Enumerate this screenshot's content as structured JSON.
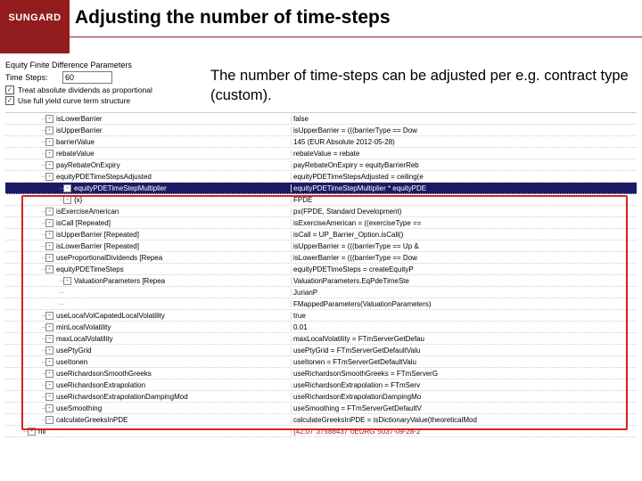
{
  "header": {
    "logo": "SUNGARD",
    "title": "Adjusting the number of time-steps"
  },
  "description": "The number of time-steps can be adjusted per e.g. contract type (custom).",
  "panel": {
    "title": "Equity Finite Difference Parameters",
    "time_steps_label": "Time Steps:",
    "time_steps_value": "60",
    "cb1": "Treat absolute dividends as proportional",
    "cb2": "Use full yield curve term structure"
  },
  "tree": {
    "rows": [
      {
        "indent": 2,
        "ex": "-",
        "label": "isLowerBarrier",
        "right": "false"
      },
      {
        "indent": 2,
        "ex": "-",
        "label": "isUpperBarrier",
        "right": "isUpperBarrier = (((barrierType == Dow"
      },
      {
        "indent": 2,
        "ex": "-",
        "label": "barrierValue",
        "right": "145 (EUR Absolute 2012-05-28)"
      },
      {
        "indent": 2,
        "ex": "-",
        "label": "rebateValue",
        "right": "rebateValue = rebate"
      },
      {
        "indent": 2,
        "ex": "-",
        "label": "payRebateOnExpiry",
        "right": "payRebateOnExpiry = equityBarrierReb"
      },
      {
        "indent": 2,
        "ex": "-",
        "label": "equityPDETimeStepsAdjusted",
        "right": "equityPDETimeStepsAdjusted = ceiling(e"
      },
      {
        "indent": 3,
        "ex": "-",
        "label": "",
        "right": "equityPDETimeStepMultiplier * equityPDE",
        "highlight": true,
        "sublabel": "equityPDETimeStepMultiplier"
      },
      {
        "indent": 3,
        "ex": "-",
        "label": "{x}",
        "right": "FPDE"
      },
      {
        "indent": 2,
        "ex": "-",
        "label": "isExerciseAmerican",
        "right": "px(FPDE, Standard Development)"
      },
      {
        "indent": 2,
        "ex": "-",
        "label": "isCall [Repeated]",
        "right": "isExerciseAmerican = ((exerciseType =="
      },
      {
        "indent": 2,
        "ex": "-",
        "label": "isUpperBarrier [Repeated]",
        "right": "isCall = UP_Barrier_Option.isCall()"
      },
      {
        "indent": 2,
        "ex": "-",
        "label": "isLowerBarrier [Repeated]",
        "right": "isUpperBarrier = (((barrierType == Up &"
      },
      {
        "indent": 2,
        "ex": "-",
        "label": "useProportionalDividends [Repea",
        "right": "isLowerBarrier = (((barrierType == Dow"
      },
      {
        "indent": 2,
        "ex": "-",
        "label": "equityPDETimeSteps",
        "right": "equityPDETimeSteps = createEquityP"
      },
      {
        "indent": 3,
        "ex": "-",
        "label": "ValuationParameters [Repea",
        "right": "ValuationParameters.EqPdeTimeSte"
      },
      {
        "indent": 3,
        "ex": "",
        "label": "",
        "right": "JurianP"
      },
      {
        "indent": 3,
        "ex": "",
        "label": "",
        "right": "FMappedParameters(ValuationParameters)"
      },
      {
        "indent": 2,
        "ex": "-",
        "label": "useLocalVolCapatedLocalVolatility",
        "right": "true"
      },
      {
        "indent": 2,
        "ex": "-",
        "label": "minLocalVolatility",
        "right": "0.01"
      },
      {
        "indent": 2,
        "ex": "-",
        "label": "maxLocalVolatility",
        "right": "maxLocalVolatility = FTmServerGetDefau"
      },
      {
        "indent": 2,
        "ex": "-",
        "label": "usePtyGrid",
        "right": "usePtyGrid = FTmServerGetDefaultValu"
      },
      {
        "indent": 2,
        "ex": "-",
        "label": "useItonen",
        "right": "useItonen = FTmServerGetDefaultValu"
      },
      {
        "indent": 2,
        "ex": "-",
        "label": "useRichardsonSmoothGreeks",
        "right": "useRichardsonSmoothGreeks = FTmServerG"
      },
      {
        "indent": 2,
        "ex": "-",
        "label": "useRichardsonExtrapolation",
        "right": "useRichardsonExtrapolation = FTmServ"
      },
      {
        "indent": 2,
        "ex": "-",
        "label": "useRichardsonExtrapolationDampingMod",
        "right": "useRichardsonExtrapolationDampingMo"
      },
      {
        "indent": 2,
        "ex": "-",
        "label": "useSmoothing",
        "right": "useSmoothing = FTmServerGetDefaultV"
      },
      {
        "indent": 2,
        "ex": "-",
        "label": "calculateGreeksInPDE",
        "right": "calculateGreeksInPDE = isDictionaryValue(theoreticalMod"
      },
      {
        "indent": 1,
        "ex": "-",
        "label": "nil",
        "right": "{42:07\"37588437\"0EURG\"5037-09-28-2",
        "last": true
      }
    ]
  },
  "colors": {
    "brand_red": "#931c1f",
    "highlight_bg": "#1a1a66",
    "outline_red": "#d92020"
  }
}
